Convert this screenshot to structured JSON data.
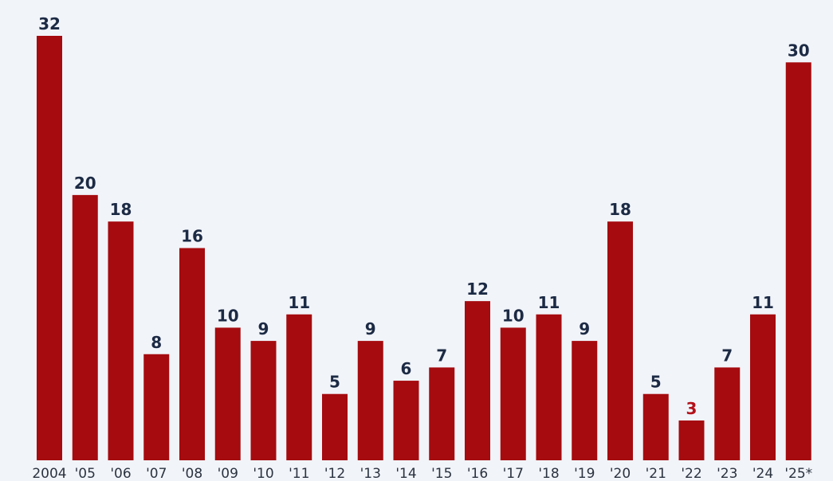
{
  "chart_data": {
    "type": "bar",
    "title": "",
    "xlabel": "",
    "ylabel": "",
    "ylim": [
      0,
      32
    ],
    "grid": false,
    "legend": "none",
    "categories": [
      "2004",
      "'05",
      "'06",
      "'07",
      "'08",
      "'09",
      "'10",
      "'11",
      "'12",
      "'13",
      "'14",
      "'15",
      "'16",
      "'17",
      "'18",
      "'19",
      "'20",
      "'21",
      "'22",
      "'23",
      "'24",
      "'25*"
    ],
    "values": [
      32,
      20,
      18,
      8,
      16,
      10,
      9,
      11,
      5,
      9,
      6,
      7,
      12,
      10,
      11,
      9,
      18,
      5,
      3,
      7,
      11,
      30
    ],
    "highlight_index": 18,
    "colors": {
      "bar": "#a50b0f",
      "label": "#1c2a44",
      "highlight_label": "#b3121a",
      "background": "#f1f4f9"
    }
  }
}
